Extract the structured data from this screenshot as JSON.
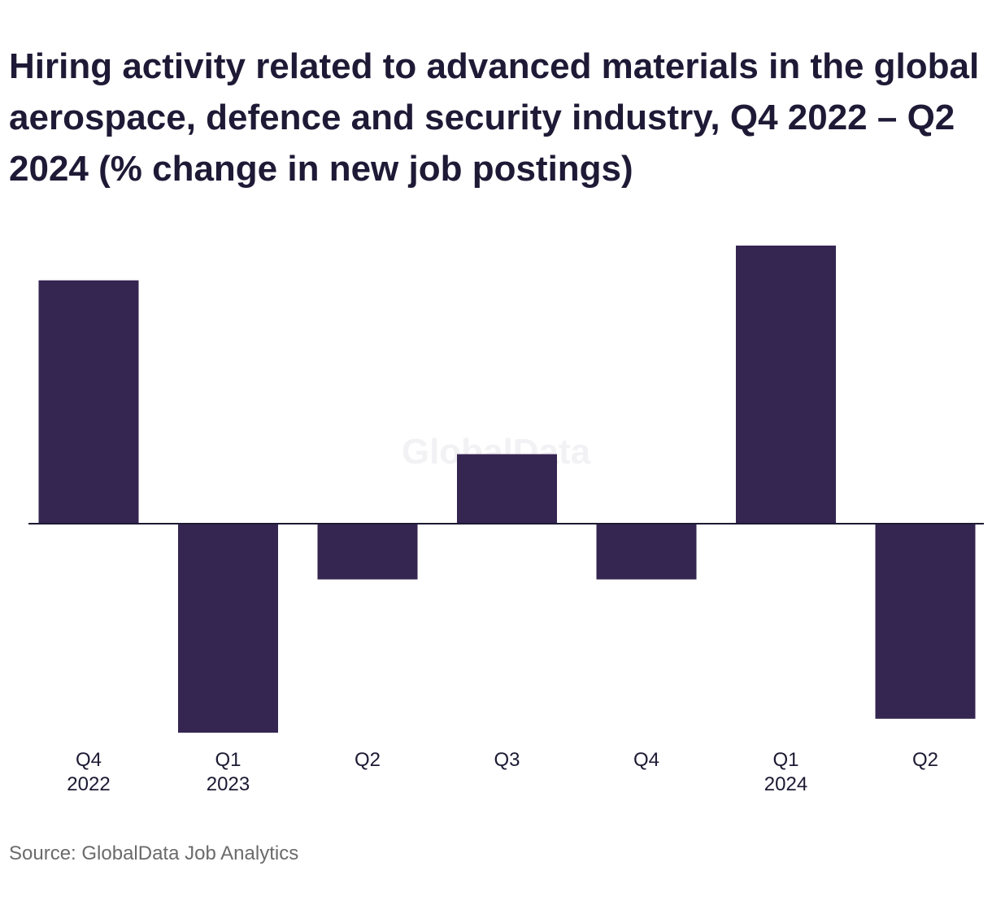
{
  "title": "Hiring activity related to advanced materials in the global aerospace, defence and security industry, Q4 2022 – Q2 2024 (% change in new job postings)",
  "source": "Source: GlobalData Job Analytics",
  "watermark": "GlobalData",
  "colors": {
    "bar": "#352551",
    "axis": "#1c1a33",
    "text": "#1c1a33"
  },
  "chart_data": {
    "type": "bar",
    "title": "Hiring activity related to advanced materials in the global aerospace, defence and security industry, Q4 2022 – Q2 2024 (% change in new job postings)",
    "categories": [
      {
        "quarter": "Q4",
        "year": "2022"
      },
      {
        "quarter": "Q1",
        "year": "2023"
      },
      {
        "quarter": "Q2",
        "year": ""
      },
      {
        "quarter": "Q3",
        "year": ""
      },
      {
        "quarter": "Q4",
        "year": ""
      },
      {
        "quarter": "Q1",
        "year": "2024"
      },
      {
        "quarter": "Q2",
        "year": ""
      }
    ],
    "values": [
      35,
      -30,
      -8,
      10,
      -8,
      40,
      -28
    ],
    "ylim": [
      -30,
      40
    ],
    "xlabel": "",
    "ylabel": "",
    "grid": false,
    "legend": "none"
  }
}
